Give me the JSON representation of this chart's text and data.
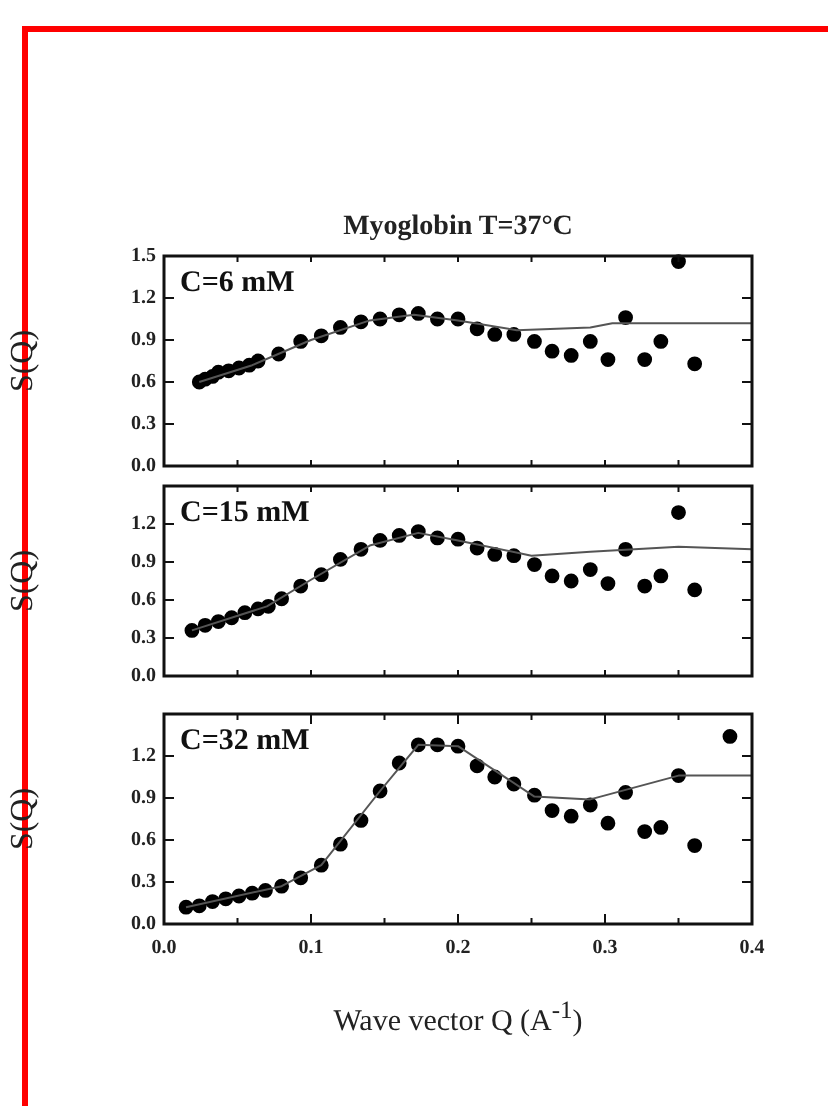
{
  "chart_data": [
    {
      "type": "scatter",
      "title": "Myoglobin T=37°C",
      "ylabel": "S(Q)",
      "annotations": [
        "C=6 mM"
      ],
      "grid": false,
      "legend": false,
      "tick_labels": "y",
      "xlim": [
        0,
        0.4
      ],
      "xticks": [
        {
          "value": 0,
          "label": null
        },
        {
          "value": 0.05,
          "label": null
        },
        {
          "value": 0.1,
          "label": null
        },
        {
          "value": 0.15,
          "label": null
        },
        {
          "value": 0.2,
          "label": null
        },
        {
          "value": 0.25,
          "label": null
        },
        {
          "value": 0.3,
          "label": null
        },
        {
          "value": 0.35,
          "label": null
        },
        {
          "value": 0.4,
          "label": null
        }
      ],
      "ylim": [
        0,
        1.5
      ],
      "yticks": [
        {
          "value": 0,
          "label": "0.0"
        },
        {
          "value": 0.3,
          "label": "0.3"
        },
        {
          "value": 0.6,
          "label": "0.6"
        },
        {
          "value": 0.9,
          "label": "0.9"
        },
        {
          "value": 1.2,
          "label": "1.2"
        },
        {
          "value": 1.5,
          "label": "1.5"
        }
      ],
      "series": [
        {
          "color": "#000000",
          "marker": "circle",
          "x": [
            0.024,
            0.028,
            0.033,
            0.037,
            0.044,
            0.051,
            0.058,
            0.064,
            0.078,
            0.093,
            0.107,
            0.12,
            0.134,
            0.147,
            0.16,
            0.173,
            0.186,
            0.2,
            0.213,
            0.225,
            0.238,
            0.252,
            0.264,
            0.277,
            0.29,
            0.302,
            0.314,
            0.327,
            0.338,
            0.35,
            0.361
          ],
          "values": [
            0.6,
            0.62,
            0.64,
            0.67,
            0.68,
            0.7,
            0.72,
            0.75,
            0.8,
            0.89,
            0.93,
            0.99,
            1.03,
            1.05,
            1.08,
            1.09,
            1.05,
            1.05,
            0.98,
            0.94,
            0.94,
            0.89,
            0.82,
            0.79,
            0.89,
            0.76,
            1.06,
            0.76,
            0.89,
            1.46,
            0.73
          ]
        },
        {
          "type": "line",
          "marker": "none",
          "color": "#555555",
          "x": [
            0.024,
            0.06,
            0.1,
            0.14,
            0.17,
            0.2,
            0.24,
            0.29,
            0.305,
            0.4
          ],
          "values": [
            0.6,
            0.72,
            0.9,
            1.04,
            1.08,
            1.04,
            0.97,
            0.99,
            1.02,
            1.02
          ]
        }
      ]
    },
    {
      "type": "scatter",
      "ylabel": "S(Q)",
      "annotations": [
        "C=15 mM"
      ],
      "grid": false,
      "legend": false,
      "tick_labels": "y",
      "xlim": [
        0,
        0.4
      ],
      "xticks": [
        {
          "value": 0,
          "label": null
        },
        {
          "value": 0.05,
          "label": null
        },
        {
          "value": 0.1,
          "label": null
        },
        {
          "value": 0.15,
          "label": null
        },
        {
          "value": 0.2,
          "label": null
        },
        {
          "value": 0.25,
          "label": null
        },
        {
          "value": 0.3,
          "label": null
        },
        {
          "value": 0.35,
          "label": null
        },
        {
          "value": 0.4,
          "label": null
        }
      ],
      "ylim": [
        0,
        1.5
      ],
      "yticks": [
        {
          "value": 0,
          "label": "0.0"
        },
        {
          "value": 0.3,
          "label": "0.3"
        },
        {
          "value": 0.6,
          "label": "0.6"
        },
        {
          "value": 0.9,
          "label": "0.9"
        },
        {
          "value": 1.2,
          "label": "1.2"
        },
        {
          "value": 1.5,
          "label": null
        }
      ],
      "series": [
        {
          "color": "#000000",
          "marker": "circle",
          "x": [
            0.019,
            0.028,
            0.037,
            0.046,
            0.055,
            0.064,
            0.071,
            0.08,
            0.093,
            0.107,
            0.12,
            0.134,
            0.147,
            0.16,
            0.173,
            0.186,
            0.2,
            0.213,
            0.225,
            0.238,
            0.252,
            0.264,
            0.277,
            0.29,
            0.302,
            0.314,
            0.327,
            0.338,
            0.35,
            0.361
          ],
          "values": [
            0.36,
            0.4,
            0.43,
            0.46,
            0.5,
            0.53,
            0.55,
            0.61,
            0.71,
            0.8,
            0.92,
            1.0,
            1.07,
            1.11,
            1.14,
            1.09,
            1.08,
            1.01,
            0.96,
            0.95,
            0.88,
            0.79,
            0.75,
            0.84,
            0.73,
            1.0,
            0.71,
            0.79,
            1.29,
            0.68
          ]
        },
        {
          "type": "line",
          "marker": "none",
          "color": "#555555",
          "x": [
            0.019,
            0.07,
            0.1,
            0.14,
            0.173,
            0.2,
            0.25,
            0.29,
            0.35,
            0.4
          ],
          "values": [
            0.36,
            0.55,
            0.76,
            1.03,
            1.13,
            1.07,
            0.95,
            0.98,
            1.02,
            1.0
          ]
        }
      ]
    },
    {
      "type": "scatter",
      "ylabel": "S(Q)",
      "xlabel": "Wave vector Q (A$^{-1}$)",
      "annotations": [
        "C=32 mM"
      ],
      "grid": false,
      "legend": false,
      "xlim": [
        0,
        0.4
      ],
      "xticks": [
        {
          "value": 0,
          "label": "0.0"
        },
        {
          "value": 0.05,
          "label": null
        },
        {
          "value": 0.1,
          "label": "0.1"
        },
        {
          "value": 0.15,
          "label": null
        },
        {
          "value": 0.2,
          "label": "0.2"
        },
        {
          "value": 0.25,
          "label": null
        },
        {
          "value": 0.3,
          "label": "0.3"
        },
        {
          "value": 0.35,
          "label": null
        },
        {
          "value": 0.4,
          "label": "0.4"
        }
      ],
      "ylim": [
        0,
        1.5
      ],
      "yticks": [
        {
          "value": 0,
          "label": "0.0"
        },
        {
          "value": 0.3,
          "label": "0.3"
        },
        {
          "value": 0.6,
          "label": "0.6"
        },
        {
          "value": 0.9,
          "label": "0.9"
        },
        {
          "value": 1.2,
          "label": "1.2"
        },
        {
          "value": 1.5,
          "label": null
        }
      ],
      "series": [
        {
          "color": "#000000",
          "marker": "circle",
          "x": [
            0.015,
            0.024,
            0.033,
            0.042,
            0.051,
            0.06,
            0.069,
            0.08,
            0.093,
            0.107,
            0.12,
            0.134,
            0.147,
            0.16,
            0.173,
            0.186,
            0.2,
            0.213,
            0.225,
            0.238,
            0.252,
            0.264,
            0.277,
            0.29,
            0.302,
            0.314,
            0.327,
            0.338,
            0.35,
            0.361,
            0.385
          ],
          "values": [
            0.12,
            0.13,
            0.16,
            0.18,
            0.2,
            0.22,
            0.24,
            0.27,
            0.33,
            0.42,
            0.57,
            0.74,
            0.95,
            1.15,
            1.28,
            1.28,
            1.27,
            1.13,
            1.05,
            1.0,
            0.92,
            0.81,
            0.77,
            0.85,
            0.72,
            0.94,
            0.66,
            0.69,
            1.06,
            0.56,
            1.34
          ]
        },
        {
          "type": "line",
          "marker": "none",
          "color": "#555555",
          "x": [
            0.015,
            0.08,
            0.107,
            0.147,
            0.173,
            0.2,
            0.252,
            0.29,
            0.35,
            0.4
          ],
          "values": [
            0.12,
            0.27,
            0.42,
            0.95,
            1.28,
            1.27,
            0.91,
            0.89,
            1.06,
            1.06
          ]
        }
      ]
    }
  ]
}
